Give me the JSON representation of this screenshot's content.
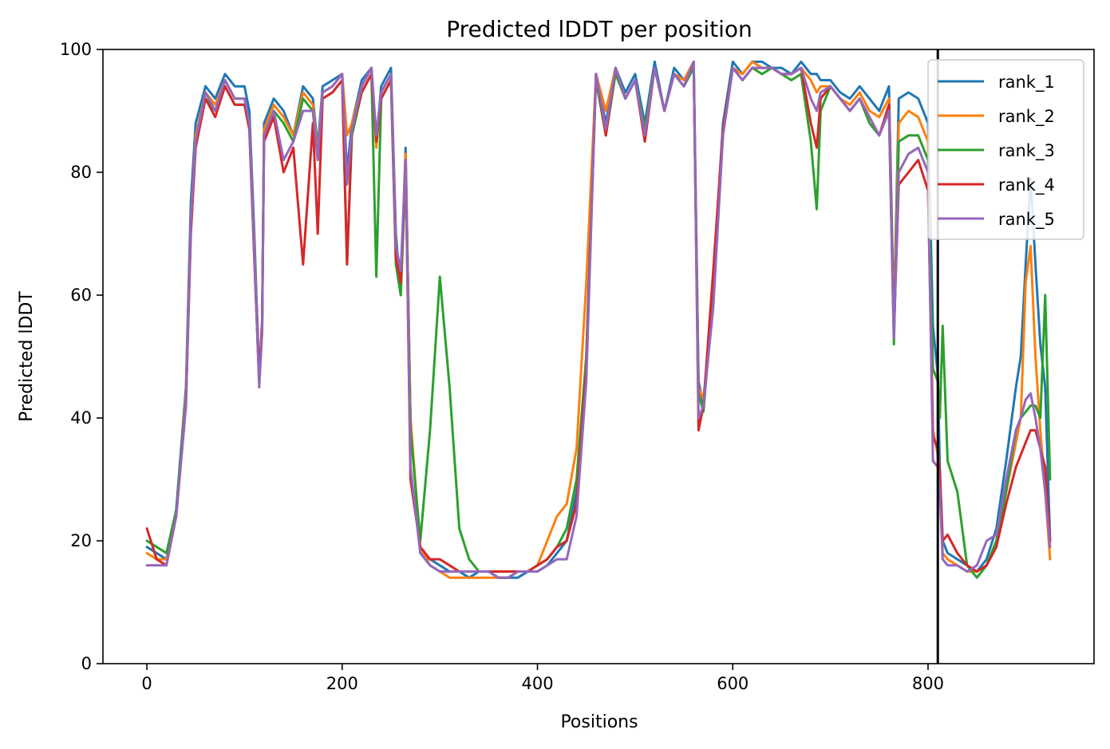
{
  "chart_data": {
    "type": "line",
    "title": "Predicted lDDT per position",
    "xlabel": "Positions",
    "ylabel": "Predicted lDDT",
    "xlim": [
      -45,
      970
    ],
    "ylim": [
      0,
      100
    ],
    "xticks": [
      0,
      200,
      400,
      600,
      800
    ],
    "yticks": [
      0,
      20,
      40,
      60,
      80,
      100
    ],
    "grid": false,
    "legend_position": "top-right",
    "vertical_line_x": 810,
    "x": [
      0,
      10,
      20,
      30,
      40,
      45,
      50,
      60,
      70,
      80,
      90,
      100,
      105,
      110,
      115,
      118,
      120,
      130,
      140,
      150,
      160,
      170,
      175,
      180,
      190,
      200,
      205,
      210,
      220,
      230,
      235,
      240,
      250,
      255,
      260,
      265,
      270,
      280,
      290,
      300,
      310,
      320,
      330,
      340,
      350,
      360,
      370,
      380,
      390,
      400,
      410,
      420,
      430,
      440,
      450,
      460,
      470,
      480,
      490,
      500,
      510,
      520,
      530,
      540,
      550,
      560,
      565,
      570,
      580,
      590,
      600,
      610,
      620,
      630,
      640,
      650,
      660,
      670,
      680,
      686,
      690,
      700,
      710,
      720,
      730,
      740,
      750,
      760,
      765,
      770,
      780,
      790,
      800,
      805,
      810,
      812,
      815,
      820,
      830,
      840,
      850,
      860,
      870,
      880,
      890,
      895,
      900,
      905,
      910,
      915,
      920,
      925
    ],
    "series": [
      {
        "name": "rank_1",
        "color": "#1f77b4",
        "values": [
          19,
          18,
          17,
          25,
          45,
          75,
          88,
          94,
          92,
          96,
          94,
          94,
          90,
          70,
          47,
          55,
          88,
          92,
          90,
          86,
          94,
          92,
          84,
          94,
          95,
          96,
          80,
          88,
          95,
          97,
          85,
          94,
          97,
          70,
          60,
          84,
          40,
          18,
          17,
          16,
          15,
          15,
          14,
          15,
          15,
          14,
          14,
          14,
          15,
          15,
          16,
          18,
          20,
          28,
          50,
          96,
          88,
          97,
          93,
          96,
          88,
          98,
          90,
          97,
          95,
          98,
          46,
          42,
          62,
          88,
          98,
          96,
          98,
          98,
          97,
          97,
          96,
          98,
          96,
          96,
          95,
          95,
          93,
          92,
          94,
          92,
          90,
          94,
          56,
          92,
          93,
          92,
          88,
          55,
          47,
          32,
          20,
          18,
          17,
          16,
          15,
          17,
          22,
          33,
          45,
          50,
          65,
          79,
          65,
          52,
          45,
          20
        ]
      },
      {
        "name": "rank_2",
        "color": "#ff7f0e",
        "values": [
          18,
          17,
          17,
          24,
          44,
          72,
          86,
          93,
          91,
          95,
          92,
          92,
          88,
          68,
          46,
          54,
          87,
          91,
          89,
          86,
          93,
          91,
          83,
          93,
          94,
          96,
          86,
          88,
          94,
          97,
          84,
          93,
          96,
          68,
          62,
          83,
          40,
          19,
          16,
          15,
          14,
          14,
          14,
          14,
          14,
          14,
          14,
          15,
          15,
          16,
          20,
          24,
          26,
          35,
          62,
          96,
          90,
          97,
          92,
          95,
          87,
          97,
          90,
          96,
          95,
          98,
          45,
          43,
          60,
          87,
          97,
          96,
          98,
          97,
          97,
          96,
          96,
          97,
          95,
          93,
          94,
          94,
          92,
          91,
          93,
          90,
          89,
          92,
          55,
          88,
          90,
          89,
          85,
          38,
          34,
          30,
          18,
          17,
          16,
          15,
          15,
          16,
          20,
          28,
          36,
          40,
          62,
          68,
          50,
          38,
          28,
          17
        ]
      },
      {
        "name": "rank_3",
        "color": "#2ca02c",
        "values": [
          20,
          19,
          18,
          25,
          43,
          70,
          85,
          92,
          90,
          94,
          91,
          91,
          87,
          66,
          46,
          55,
          86,
          90,
          88,
          85,
          92,
          90,
          82,
          92,
          93,
          95,
          65,
          86,
          93,
          96,
          63,
          92,
          95,
          65,
          60,
          80,
          38,
          20,
          38,
          63,
          45,
          22,
          17,
          15,
          15,
          14,
          14,
          15,
          15,
          16,
          17,
          19,
          22,
          30,
          50,
          95,
          86,
          96,
          92,
          95,
          87,
          97,
          90,
          96,
          94,
          97,
          44,
          41,
          60,
          86,
          97,
          95,
          97,
          96,
          97,
          96,
          95,
          96,
          85,
          74,
          90,
          94,
          92,
          90,
          92,
          88,
          86,
          90,
          52,
          85,
          86,
          86,
          82,
          48,
          46,
          40,
          55,
          33,
          28,
          16,
          14,
          16,
          20,
          28,
          38,
          40,
          41,
          42,
          42,
          40,
          60,
          30
        ]
      },
      {
        "name": "rank_4",
        "color": "#d62728",
        "values": [
          22,
          17,
          16,
          24,
          42,
          70,
          84,
          92,
          89,
          94,
          91,
          91,
          87,
          66,
          46,
          56,
          85,
          89,
          80,
          84,
          65,
          88,
          70,
          92,
          93,
          95,
          65,
          87,
          93,
          96,
          85,
          92,
          95,
          66,
          62,
          82,
          30,
          19,
          17,
          17,
          16,
          15,
          15,
          15,
          15,
          15,
          15,
          15,
          15,
          16,
          17,
          19,
          20,
          26,
          48,
          96,
          86,
          97,
          92,
          95,
          85,
          97,
          90,
          96,
          94,
          98,
          38,
          42,
          64,
          87,
          97,
          95,
          97,
          97,
          97,
          96,
          96,
          97,
          88,
          84,
          92,
          94,
          92,
          90,
          92,
          89,
          86,
          91,
          54,
          78,
          80,
          82,
          77,
          37,
          35,
          31,
          20,
          21,
          18,
          16,
          15,
          16,
          19,
          26,
          32,
          34,
          36,
          38,
          38,
          35,
          32,
          20
        ]
      },
      {
        "name": "rank_5",
        "color": "#9467bd",
        "values": [
          16,
          16,
          16,
          24,
          42,
          72,
          85,
          93,
          90,
          95,
          92,
          92,
          88,
          67,
          45,
          54,
          86,
          90,
          82,
          85,
          90,
          90,
          82,
          93,
          94,
          96,
          78,
          87,
          94,
          97,
          86,
          93,
          96,
          68,
          64,
          82,
          32,
          18,
          16,
          15,
          15,
          15,
          15,
          15,
          15,
          14,
          14,
          15,
          15,
          15,
          16,
          17,
          17,
          24,
          46,
          96,
          87,
          97,
          92,
          95,
          86,
          97,
          90,
          96,
          94,
          98,
          40,
          42,
          58,
          86,
          97,
          95,
          97,
          97,
          97,
          96,
          96,
          97,
          92,
          90,
          93,
          94,
          92,
          90,
          92,
          89,
          86,
          90,
          53,
          80,
          83,
          84,
          80,
          33,
          32,
          28,
          17,
          16,
          16,
          15,
          16,
          20,
          21,
          30,
          38,
          40,
          43,
          44,
          40,
          35,
          28,
          19
        ]
      }
    ]
  }
}
